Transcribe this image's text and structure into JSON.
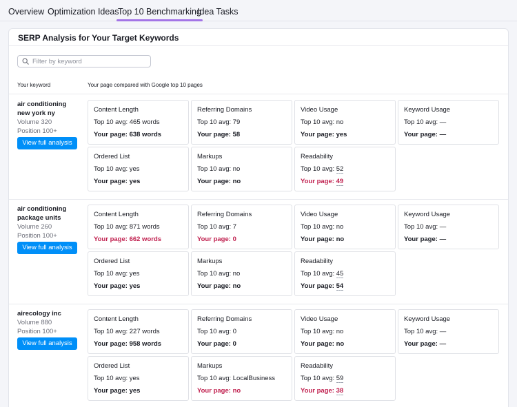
{
  "tabs": [
    {
      "label": "Overview",
      "active": false
    },
    {
      "label": "Optimization Ideas",
      "active": false
    },
    {
      "label": "Top 10 Benchmarking",
      "active": true
    },
    {
      "label": "Idea Tasks",
      "active": false
    }
  ],
  "panel": {
    "title": "SERP Analysis for Your Target Keywords",
    "search_placeholder": "Filter by keyword",
    "col_keyword": "Your keyword",
    "col_compare": "Your page compared with Google top 10 pages"
  },
  "colors": {
    "accent": "#a374e6",
    "button": "#008ff8",
    "bad": "#c01f4e"
  },
  "rows": [
    {
      "keyword_lines": [
        "air conditioning",
        "new york ny"
      ],
      "volume": "Volume 320",
      "position": "Position 100+",
      "button": "View full analysis",
      "cards": [
        {
          "title": "Content Length",
          "avg_label": "Top 10 avg: ",
          "avg_value": "465 words",
          "page_label": "Your page: ",
          "page_value": "638 words",
          "bad": false,
          "dotted": false
        },
        {
          "title": "Referring Domains",
          "avg_label": "Top 10 avg: ",
          "avg_value": "79",
          "page_label": "Your page: ",
          "page_value": "58",
          "bad": false,
          "dotted": false
        },
        {
          "title": "Video Usage",
          "avg_label": "Top 10 avg: ",
          "avg_value": "no",
          "page_label": "Your page: ",
          "page_value": "yes",
          "bad": false,
          "dotted": false
        },
        {
          "title": "Keyword Usage",
          "avg_label": "Top 10 avg: ",
          "avg_value": "—",
          "page_label": "Your page: ",
          "page_value": "—",
          "bad": false,
          "dotted": false
        },
        {
          "title": "Ordered List",
          "avg_label": "Top 10 avg: ",
          "avg_value": "yes",
          "page_label": "Your page: ",
          "page_value": "yes",
          "bad": false,
          "dotted": false
        },
        {
          "title": "Markups",
          "avg_label": "Top 10 avg: ",
          "avg_value": "no",
          "page_label": "Your page: ",
          "page_value": "no",
          "bad": false,
          "dotted": false
        },
        {
          "title": "Readability",
          "avg_label": "Top 10 avg: ",
          "avg_value": "52",
          "page_label": "Your page: ",
          "page_value": "49",
          "bad": true,
          "dotted": true
        }
      ]
    },
    {
      "keyword_lines": [
        "air conditioning",
        "package units"
      ],
      "volume": "Volume 260",
      "position": "Position 100+",
      "button": "View full analysis",
      "cards": [
        {
          "title": "Content Length",
          "avg_label": "Top 10 avg: ",
          "avg_value": "871 words",
          "page_label": "Your page: ",
          "page_value": "662 words",
          "bad": true,
          "dotted": false
        },
        {
          "title": "Referring Domains",
          "avg_label": "Top 10 avg: ",
          "avg_value": "7",
          "page_label": "Your page: ",
          "page_value": "0",
          "bad": true,
          "dotted": false
        },
        {
          "title": "Video Usage",
          "avg_label": "Top 10 avg: ",
          "avg_value": "no",
          "page_label": "Your page: ",
          "page_value": "no",
          "bad": false,
          "dotted": false
        },
        {
          "title": "Keyword Usage",
          "avg_label": "Top 10 avg: ",
          "avg_value": "—",
          "page_label": "Your page: ",
          "page_value": "—",
          "bad": false,
          "dotted": false
        },
        {
          "title": "Ordered List",
          "avg_label": "Top 10 avg: ",
          "avg_value": "yes",
          "page_label": "Your page: ",
          "page_value": "yes",
          "bad": false,
          "dotted": false
        },
        {
          "title": "Markups",
          "avg_label": "Top 10 avg: ",
          "avg_value": "no",
          "page_label": "Your page: ",
          "page_value": "no",
          "bad": false,
          "dotted": false
        },
        {
          "title": "Readability",
          "avg_label": "Top 10 avg: ",
          "avg_value": "45",
          "page_label": "Your page: ",
          "page_value": "54",
          "bad": false,
          "dotted": true
        }
      ]
    },
    {
      "keyword_lines": [
        "airecology inc"
      ],
      "volume": "Volume 880",
      "position": "Position 100+",
      "button": "View full analysis",
      "cards": [
        {
          "title": "Content Length",
          "avg_label": "Top 10 avg: ",
          "avg_value": "227 words",
          "page_label": "Your page: ",
          "page_value": "958 words",
          "bad": false,
          "dotted": false
        },
        {
          "title": "Referring Domains",
          "avg_label": "Top 10 avg: ",
          "avg_value": "0",
          "page_label": "Your page: ",
          "page_value": "0",
          "bad": false,
          "dotted": false
        },
        {
          "title": "Video Usage",
          "avg_label": "Top 10 avg: ",
          "avg_value": "no",
          "page_label": "Your page: ",
          "page_value": "no",
          "bad": false,
          "dotted": false
        },
        {
          "title": "Keyword Usage",
          "avg_label": "Top 10 avg: ",
          "avg_value": "—",
          "page_label": "Your page: ",
          "page_value": "—",
          "bad": false,
          "dotted": false
        },
        {
          "title": "Ordered List",
          "avg_label": "Top 10 avg: ",
          "avg_value": "yes",
          "page_label": "Your page: ",
          "page_value": "yes",
          "bad": false,
          "dotted": false
        },
        {
          "title": "Markups",
          "avg_label": "Top 10 avg: ",
          "avg_value": "LocalBusiness",
          "page_label": "Your page: ",
          "page_value": "no",
          "bad": true,
          "dotted": false
        },
        {
          "title": "Readability",
          "avg_label": "Top 10 avg: ",
          "avg_value": "59",
          "page_label": "Your page: ",
          "page_value": "38",
          "bad": true,
          "dotted": true
        }
      ]
    }
  ]
}
